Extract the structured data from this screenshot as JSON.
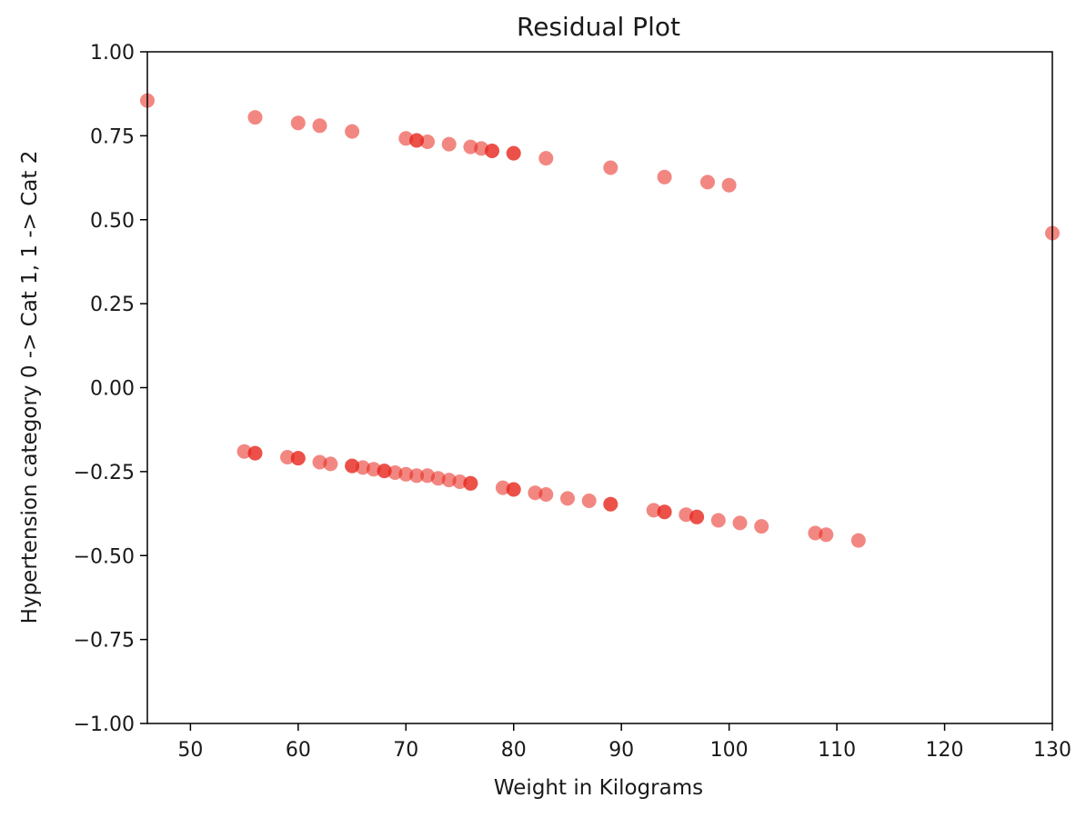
{
  "chart_data": {
    "type": "scatter",
    "title": "Residual Plot",
    "xlabel": "Weight in Kilograms",
    "ylabel": "Hypertension category 0 -> Cat 1, 1 -> Cat 2",
    "xlim": [
      46,
      130
    ],
    "ylim": [
      -1.0,
      1.0
    ],
    "xticks": [
      50,
      60,
      70,
      80,
      90,
      100,
      110,
      120,
      130
    ],
    "yticks": [
      -1.0,
      -0.75,
      -0.5,
      -0.25,
      0.0,
      0.25,
      0.5,
      0.75,
      1.0
    ],
    "xtick_labels": [
      "50",
      "60",
      "70",
      "80",
      "90",
      "100",
      "110",
      "120",
      "130"
    ],
    "ytick_labels": [
      "−1.00",
      "−0.75",
      "−0.50",
      "−0.25",
      "0.00",
      "0.25",
      "0.50",
      "0.75",
      "1.00"
    ],
    "grid": false,
    "marker_color": "#e8251b",
    "marker_alpha": 0.55,
    "series": [
      {
        "name": "residuals",
        "points": [
          [
            46,
            0.855
          ],
          [
            56,
            0.805
          ],
          [
            60,
            0.788
          ],
          [
            62,
            0.78
          ],
          [
            65,
            0.763
          ],
          [
            70,
            0.742
          ],
          [
            71,
            0.736
          ],
          [
            71,
            0.736
          ],
          [
            72,
            0.732
          ],
          [
            74,
            0.725
          ],
          [
            76,
            0.717
          ],
          [
            77,
            0.712
          ],
          [
            78,
            0.705
          ],
          [
            78,
            0.705
          ],
          [
            80,
            0.698
          ],
          [
            80,
            0.698
          ],
          [
            83,
            0.683
          ],
          [
            89,
            0.655
          ],
          [
            94,
            0.627
          ],
          [
            98,
            0.612
          ],
          [
            100,
            0.603
          ],
          [
            130,
            0.46
          ],
          [
            55,
            -0.19
          ],
          [
            56,
            -0.195
          ],
          [
            56,
            -0.195
          ],
          [
            59,
            -0.207
          ],
          [
            60,
            -0.21
          ],
          [
            60,
            -0.21
          ],
          [
            62,
            -0.222
          ],
          [
            63,
            -0.227
          ],
          [
            65,
            -0.233
          ],
          [
            65,
            -0.233
          ],
          [
            66,
            -0.238
          ],
          [
            67,
            -0.243
          ],
          [
            68,
            -0.248
          ],
          [
            68,
            -0.248
          ],
          [
            69,
            -0.253
          ],
          [
            70,
            -0.258
          ],
          [
            71,
            -0.262
          ],
          [
            72,
            -0.262
          ],
          [
            73,
            -0.27
          ],
          [
            74,
            -0.275
          ],
          [
            75,
            -0.28
          ],
          [
            76,
            -0.285
          ],
          [
            76,
            -0.285
          ],
          [
            79,
            -0.298
          ],
          [
            80,
            -0.303
          ],
          [
            80,
            -0.303
          ],
          [
            82,
            -0.313
          ],
          [
            83,
            -0.318
          ],
          [
            85,
            -0.33
          ],
          [
            87,
            -0.337
          ],
          [
            89,
            -0.347
          ],
          [
            89,
            -0.347
          ],
          [
            93,
            -0.365
          ],
          [
            94,
            -0.37
          ],
          [
            94,
            -0.37
          ],
          [
            96,
            -0.378
          ],
          [
            97,
            -0.385
          ],
          [
            97,
            -0.385
          ],
          [
            99,
            -0.395
          ],
          [
            101,
            -0.403
          ],
          [
            103,
            -0.413
          ],
          [
            108,
            -0.433
          ],
          [
            109,
            -0.438
          ],
          [
            112,
            -0.455
          ]
        ]
      }
    ]
  }
}
